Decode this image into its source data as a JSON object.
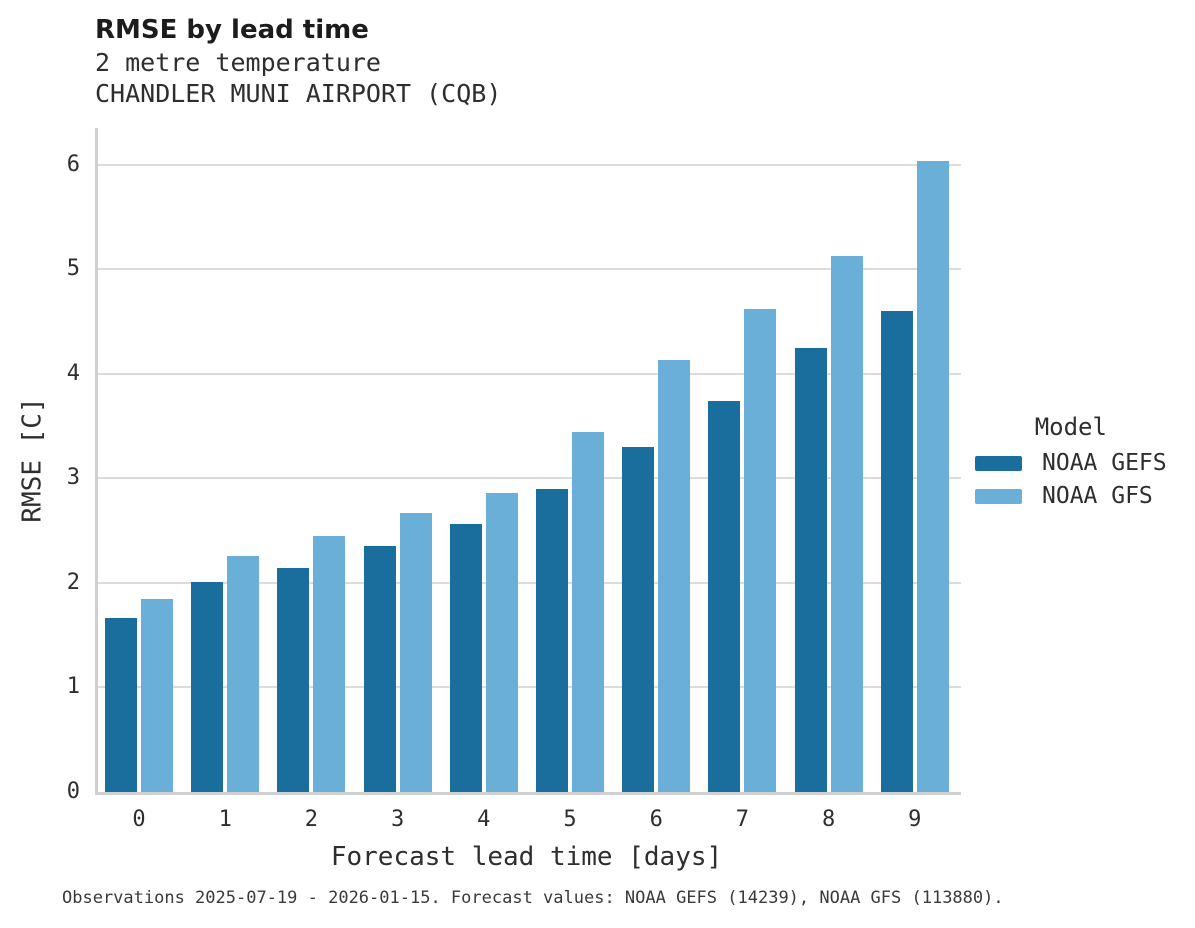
{
  "header": {
    "title": "RMSE by lead time",
    "subtitle1": "2 metre temperature",
    "subtitle2": "CHANDLER MUNI AIRPORT (CQB)"
  },
  "chart_data": {
    "type": "bar",
    "title": "RMSE by lead time",
    "subtitle": "2 metre temperature — CHANDLER MUNI AIRPORT (CQB)",
    "categories": [
      "0",
      "1",
      "2",
      "3",
      "4",
      "5",
      "6",
      "7",
      "8",
      "9"
    ],
    "series": [
      {
        "name": "NOAA GEFS",
        "color": "#1a6e9e",
        "values": [
          1.66,
          2.01,
          2.14,
          2.35,
          2.56,
          2.9,
          3.3,
          3.74,
          4.25,
          4.6
        ]
      },
      {
        "name": "NOAA GFS",
        "color": "#6aafd8",
        "values": [
          1.85,
          2.26,
          2.45,
          2.67,
          2.86,
          3.44,
          4.13,
          4.62,
          5.13,
          6.03
        ]
      }
    ],
    "xlabel": "Forecast lead time [days]",
    "ylabel": "RMSE [C]",
    "ylim": [
      0,
      6.35
    ],
    "yticks": [
      0,
      1,
      2,
      3,
      4,
      5,
      6
    ],
    "grid": "horizontal",
    "legend": {
      "title": "Model",
      "position": "right"
    }
  },
  "colors": {
    "gefs": "#1a6e9e",
    "gfs": "#6aafd8",
    "gridline": "#dcdcdc",
    "spine": "#cfcfcf"
  },
  "caption": "Observations 2025-07-19 - 2026-01-15. Forecast values: NOAA GEFS (14239), NOAA GFS (113880)."
}
